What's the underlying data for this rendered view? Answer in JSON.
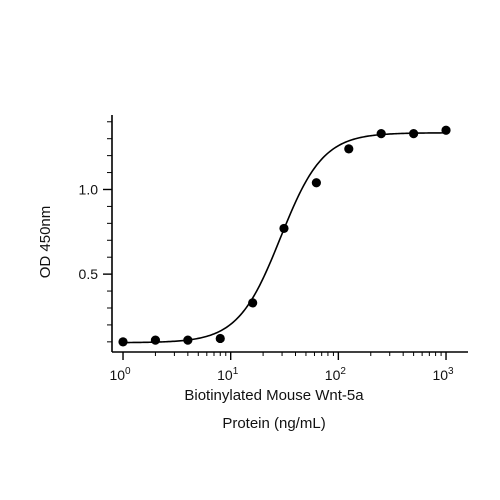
{
  "chart_data": {
    "type": "scatter",
    "title": "",
    "xlabel_lines": [
      "Biotinylated Mouse Wnt-5a",
      "Protein (ng/mL)"
    ],
    "ylabel": "OD 450nm",
    "xscale": "log10",
    "xlim": [
      0.79,
      1600
    ],
    "ylim": [
      0.04,
      1.44
    ],
    "x_major_ticks": [
      1,
      10,
      100,
      1000
    ],
    "x_tick_labels": [
      {
        "base": "10",
        "exp": "0"
      },
      {
        "base": "10",
        "exp": "1"
      },
      {
        "base": "10",
        "exp": "2"
      },
      {
        "base": "10",
        "exp": "3"
      }
    ],
    "y_major_ticks": [
      0.5,
      1.0
    ],
    "y_tick_labels": [
      "0.5",
      "1.0"
    ],
    "y_minor_step": 0.1,
    "grid": false,
    "legend": "none",
    "series": [
      {
        "x": [
          1,
          2,
          4,
          8,
          16,
          31.25,
          62.5,
          125,
          250,
          500,
          1000
        ],
        "y": [
          0.1,
          0.11,
          0.11,
          0.12,
          0.33,
          0.77,
          1.04,
          1.24,
          1.33,
          1.33,
          1.35
        ]
      }
    ],
    "fit": {
      "bottom": 0.095,
      "top": 1.335,
      "ec50": 29,
      "hill": 2.2
    },
    "colors": {
      "marker": "#000000",
      "line": "#000000",
      "axis": "#000000"
    }
  }
}
